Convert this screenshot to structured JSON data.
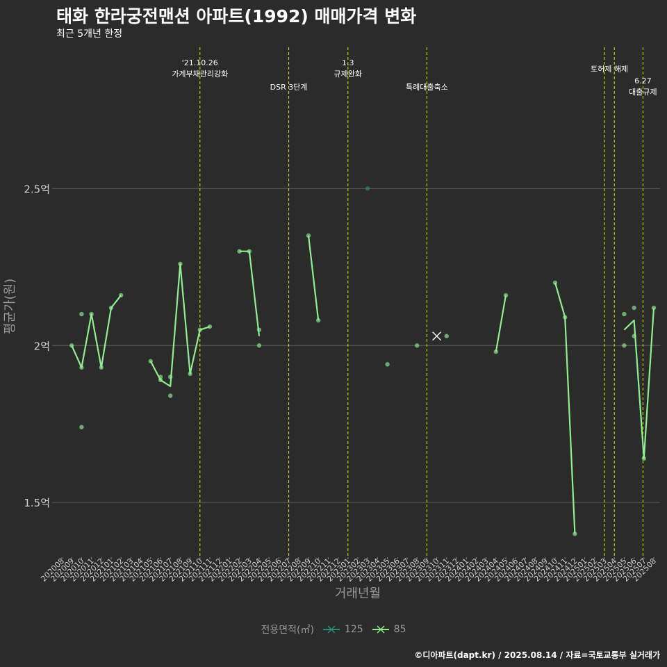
{
  "title": "태화 한라궁전맨션 아파트(1992) 매매가격 변화",
  "subtitle": "최근 5개년 한정",
  "caption": "©디아파트(dapt.kr) / 2025.08.14 / 자료=국토교통부 실거래가",
  "colors": {
    "background": "#2b2b2c",
    "grid": "#555555",
    "series_85": "#90ee90",
    "series_125": "#2e8b7a",
    "vline": "#e6e600"
  },
  "chart_data": {
    "type": "line",
    "xlabel": "거래년월",
    "ylabel": "평균가(원)",
    "ylim": [
      1.33,
      2.95
    ],
    "yticks": [
      {
        "value": 1.5,
        "label": "1.5억"
      },
      {
        "value": 2.0,
        "label": "2억"
      },
      {
        "value": 2.5,
        "label": "2.5억"
      }
    ],
    "categories": [
      "202008",
      "202009",
      "202010",
      "202011",
      "202012",
      "202101",
      "202102",
      "202103",
      "202104",
      "202105",
      "202106",
      "202107",
      "202108",
      "202109",
      "202110",
      "202111",
      "202112",
      "202201",
      "202202",
      "202203",
      "202204",
      "202205",
      "202206",
      "202207",
      "202208",
      "202209",
      "202210",
      "202211",
      "202212",
      "202301",
      "202302",
      "202303",
      "202304",
      "202305",
      "202306",
      "202307",
      "202308",
      "202309",
      "202310",
      "202311",
      "202312",
      "202401",
      "202402",
      "202403",
      "202404",
      "202405",
      "202406",
      "202407",
      "202408",
      "202409",
      "202410",
      "202411",
      "202412",
      "202501",
      "202502",
      "202503",
      "202504",
      "202505",
      "202506",
      "202507",
      "202508"
    ],
    "legend_title": "전용면적(㎡)",
    "series": [
      {
        "name": "85",
        "line": [
          [
            1,
            2.0
          ],
          [
            2,
            1.93
          ],
          [
            3,
            2.1
          ],
          [
            4,
            1.93
          ],
          [
            5,
            2.12
          ],
          [
            6,
            2.16
          ],
          null,
          [
            9,
            1.95
          ],
          [
            10,
            1.89
          ],
          [
            11,
            1.87
          ],
          [
            12,
            2.26
          ],
          [
            13,
            1.91
          ],
          [
            14,
            2.05
          ],
          [
            15,
            2.06
          ],
          null,
          [
            18,
            2.3
          ],
          [
            19,
            2.3
          ],
          [
            20,
            2.03
          ],
          null,
          [
            25,
            2.35
          ],
          [
            26,
            2.08
          ],
          null,
          [
            44,
            1.98
          ],
          [
            45,
            2.16
          ],
          null,
          [
            50,
            2.2
          ],
          [
            51,
            2.09
          ],
          [
            52,
            1.4
          ],
          null,
          [
            57,
            2.05
          ],
          [
            58,
            2.08
          ],
          [
            59,
            1.64
          ],
          [
            60,
            2.12
          ]
        ],
        "points": [
          [
            1,
            2.0
          ],
          [
            2,
            1.93
          ],
          [
            2,
            1.74
          ],
          [
            2,
            2.1
          ],
          [
            3,
            2.1
          ],
          [
            4,
            1.93
          ],
          [
            5,
            2.12
          ],
          [
            6,
            2.16
          ],
          [
            9,
            1.95
          ],
          [
            10,
            1.89
          ],
          [
            10,
            1.9
          ],
          [
            11,
            1.84
          ],
          [
            11,
            1.9
          ],
          [
            12,
            2.26
          ],
          [
            13,
            1.91
          ],
          [
            14,
            2.05
          ],
          [
            15,
            2.06
          ],
          [
            18,
            2.3
          ],
          [
            19,
            2.3
          ],
          [
            20,
            2.05
          ],
          [
            20,
            2.0
          ],
          [
            25,
            2.35
          ],
          [
            26,
            2.08
          ],
          [
            33,
            1.94
          ],
          [
            36,
            2.0
          ],
          [
            39,
            2.03
          ],
          [
            44,
            1.98
          ],
          [
            45,
            2.16
          ],
          [
            50,
            2.2
          ],
          [
            51,
            2.09
          ],
          [
            52,
            1.4
          ],
          [
            57,
            2.1
          ],
          [
            57,
            2.0
          ],
          [
            58,
            2.12
          ],
          [
            58,
            2.03
          ],
          [
            59,
            1.64
          ],
          [
            60,
            2.12
          ]
        ]
      },
      {
        "name": "125",
        "line": [],
        "points": [
          [
            31,
            2.5
          ]
        ]
      }
    ],
    "crossmark": [
      38,
      2.03
    ],
    "events": [
      {
        "x": 14.0,
        "label_lines": [
          "'21.10.26",
          "가계부채관리강화"
        ],
        "level": 1
      },
      {
        "x": 23.0,
        "label_lines": [
          "DSR 3단계"
        ],
        "level": 3
      },
      {
        "x": 29.0,
        "label_lines": [
          "1.3",
          "규제완화"
        ],
        "level": 1
      },
      {
        "x": 37.0,
        "label_lines": [
          "특례대출축소"
        ],
        "level": 3
      },
      {
        "x": 55.0,
        "label_lines": [],
        "level": 2
      },
      {
        "x": 56.0,
        "label_lines": [
          "토허제 해제"
        ],
        "level": 2,
        "center_offset": -0.5
      },
      {
        "x": 58.9,
        "label_lines": [
          "6.27",
          "대출규제"
        ],
        "level": 4
      }
    ]
  }
}
